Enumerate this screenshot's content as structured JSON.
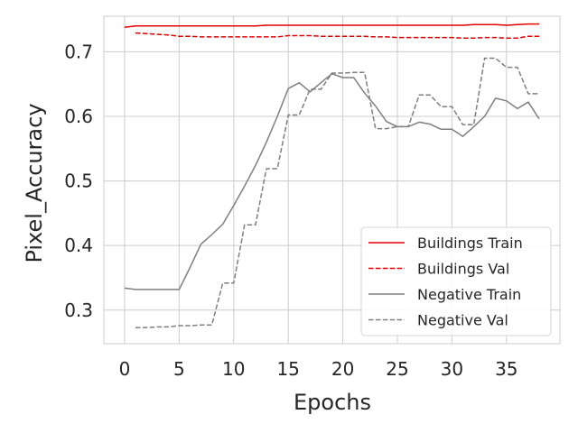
{
  "chart_data": {
    "type": "line",
    "title": "",
    "xlabel": "Epochs",
    "ylabel": "Pixel_Accuracy",
    "xlim": [
      -1.9,
      39.9
    ],
    "ylim": [
      0.248,
      0.755
    ],
    "xticks": [
      0,
      5,
      10,
      15,
      20,
      25,
      30,
      35
    ],
    "yticks": [
      0.3,
      0.4,
      0.5,
      0.6,
      0.7
    ],
    "xtick_labels": [
      "0",
      "5",
      "10",
      "15",
      "20",
      "25",
      "30",
      "35"
    ],
    "ytick_labels": [
      "0.3",
      "0.4",
      "0.5",
      "0.6",
      "0.7"
    ],
    "grid": true,
    "legend_position": "lower-right",
    "series": [
      {
        "name": "Buildings Train",
        "color": "#e00000",
        "dash": "solid",
        "x": [
          0,
          1,
          2,
          3,
          4,
          5,
          6,
          7,
          8,
          9,
          10,
          11,
          12,
          13,
          14,
          15,
          16,
          17,
          18,
          19,
          20,
          21,
          22,
          23,
          24,
          25,
          26,
          27,
          28,
          29,
          30,
          31,
          32,
          33,
          34,
          35,
          36,
          37,
          38
        ],
        "y": [
          0.738,
          0.74,
          0.74,
          0.74,
          0.74,
          0.74,
          0.74,
          0.74,
          0.74,
          0.74,
          0.74,
          0.74,
          0.74,
          0.741,
          0.741,
          0.741,
          0.741,
          0.741,
          0.741,
          0.741,
          0.741,
          0.741,
          0.741,
          0.741,
          0.741,
          0.741,
          0.741,
          0.741,
          0.741,
          0.741,
          0.741,
          0.741,
          0.742,
          0.742,
          0.742,
          0.741,
          0.742,
          0.743,
          0.743
        ]
      },
      {
        "name": "Buildings Val",
        "color": "#e00000",
        "dash": "dashed",
        "x": [
          1,
          2,
          3,
          4,
          5,
          6,
          7,
          8,
          9,
          10,
          11,
          12,
          13,
          14,
          15,
          16,
          17,
          18,
          19,
          20,
          21,
          22,
          23,
          24,
          25,
          26,
          27,
          28,
          29,
          30,
          31,
          32,
          33,
          34,
          35,
          36,
          37,
          38
        ],
        "y": [
          0.729,
          0.728,
          0.727,
          0.726,
          0.724,
          0.724,
          0.723,
          0.723,
          0.723,
          0.723,
          0.723,
          0.723,
          0.723,
          0.723,
          0.725,
          0.725,
          0.725,
          0.724,
          0.724,
          0.724,
          0.724,
          0.724,
          0.723,
          0.723,
          0.722,
          0.722,
          0.722,
          0.722,
          0.722,
          0.722,
          0.721,
          0.721,
          0.722,
          0.722,
          0.721,
          0.721,
          0.724,
          0.724
        ]
      },
      {
        "name": "Negative Train",
        "color": "#7f7f7f",
        "dash": "solid",
        "x": [
          0,
          1,
          2,
          3,
          4,
          5,
          6,
          7,
          8,
          9,
          10,
          11,
          12,
          13,
          14,
          15,
          16,
          17,
          18,
          19,
          20,
          21,
          22,
          23,
          24,
          25,
          26,
          27,
          28,
          29,
          30,
          31,
          32,
          33,
          34,
          35,
          36,
          37,
          38
        ],
        "y": [
          0.334,
          0.332,
          0.332,
          0.332,
          0.332,
          0.332,
          0.366,
          0.402,
          0.417,
          0.433,
          0.462,
          0.492,
          0.524,
          0.56,
          0.6,
          0.643,
          0.652,
          0.638,
          0.652,
          0.666,
          0.66,
          0.66,
          0.636,
          0.616,
          0.592,
          0.584,
          0.584,
          0.591,
          0.588,
          0.58,
          0.58,
          0.569,
          0.584,
          0.6,
          0.628,
          0.624,
          0.612,
          0.622,
          0.596
        ]
      },
      {
        "name": "Negative Val",
        "color": "#7f7f7f",
        "dash": "dashed",
        "x": [
          1,
          2,
          3,
          4,
          5,
          6,
          7,
          8,
          9,
          10,
          11,
          12,
          13,
          14,
          15,
          16,
          17,
          18,
          19,
          20,
          21,
          22,
          23,
          24,
          25,
          26,
          27,
          28,
          29,
          30,
          31,
          32,
          33,
          34,
          35,
          36,
          37,
          38
        ],
        "y": [
          0.273,
          0.273,
          0.274,
          0.274,
          0.276,
          0.276,
          0.277,
          0.277,
          0.342,
          0.342,
          0.432,
          0.432,
          0.519,
          0.519,
          0.602,
          0.602,
          0.642,
          0.642,
          0.667,
          0.667,
          0.668,
          0.668,
          0.581,
          0.581,
          0.584,
          0.584,
          0.633,
          0.633,
          0.615,
          0.615,
          0.587,
          0.587,
          0.69,
          0.69,
          0.676,
          0.676,
          0.635,
          0.635
        ]
      }
    ]
  }
}
